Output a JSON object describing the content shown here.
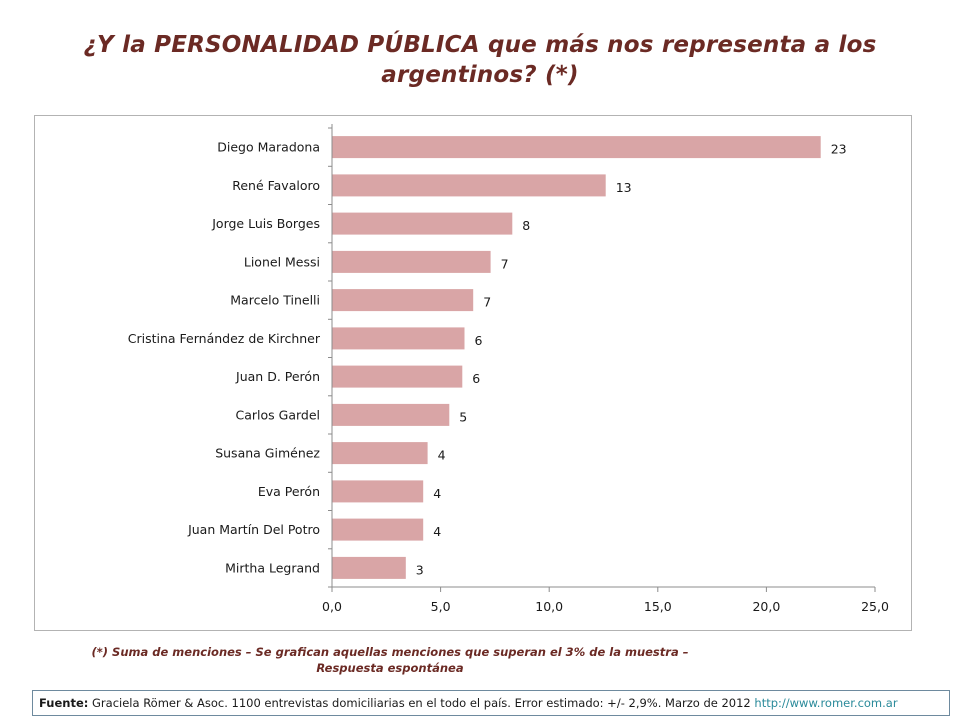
{
  "title": "¿Y la PERSONALIDAD PÚBLICA que más nos representa a los argentinos? (*)",
  "note_line1": "(*) Suma de menciones – Se grafican aquellas menciones que superan el 3% de la muestra –",
  "note_line2": "Respuesta espontánea",
  "source": {
    "label": "Fuente:",
    "text": " Graciela Römer & Asoc. 1100 entrevistas domiciliarias en el todo el país. Error estimado: +/- 2,9%. Marzo de 2012 ",
    "url": "http://www.romer.com.ar"
  },
  "colors": {
    "bar": "#d9a5a6",
    "title": "#6b2a24",
    "axis": "#8c8c8c",
    "url": "#2a8a9a"
  },
  "chart_data": {
    "type": "bar",
    "orientation": "horizontal",
    "categories": [
      "Diego Maradona",
      "René Favaloro",
      "Jorge Luis Borges",
      "Lionel Messi",
      "Marcelo Tinelli",
      "Cristina Fernández de Kirchner",
      "Juan D. Perón",
      "Carlos Gardel",
      "Susana Giménez",
      "Eva Perón",
      "Juan Martín Del Potro",
      "Mirtha Legrand"
    ],
    "values": [
      22.5,
      12.6,
      8.3,
      7.3,
      6.5,
      6.1,
      6.0,
      5.4,
      4.4,
      4.2,
      4.2,
      3.4
    ],
    "value_labels": [
      "23",
      "13",
      "8",
      "7",
      "7",
      "6",
      "6",
      "5",
      "4",
      "4",
      "4",
      "3"
    ],
    "xlim": [
      0,
      25
    ],
    "xticks": [
      0,
      5,
      10,
      15,
      20,
      25
    ],
    "xtick_labels": [
      "0,0",
      "5,0",
      "10,0",
      "15,0",
      "20,0",
      "25,0"
    ],
    "grid": false,
    "legend": "none"
  }
}
